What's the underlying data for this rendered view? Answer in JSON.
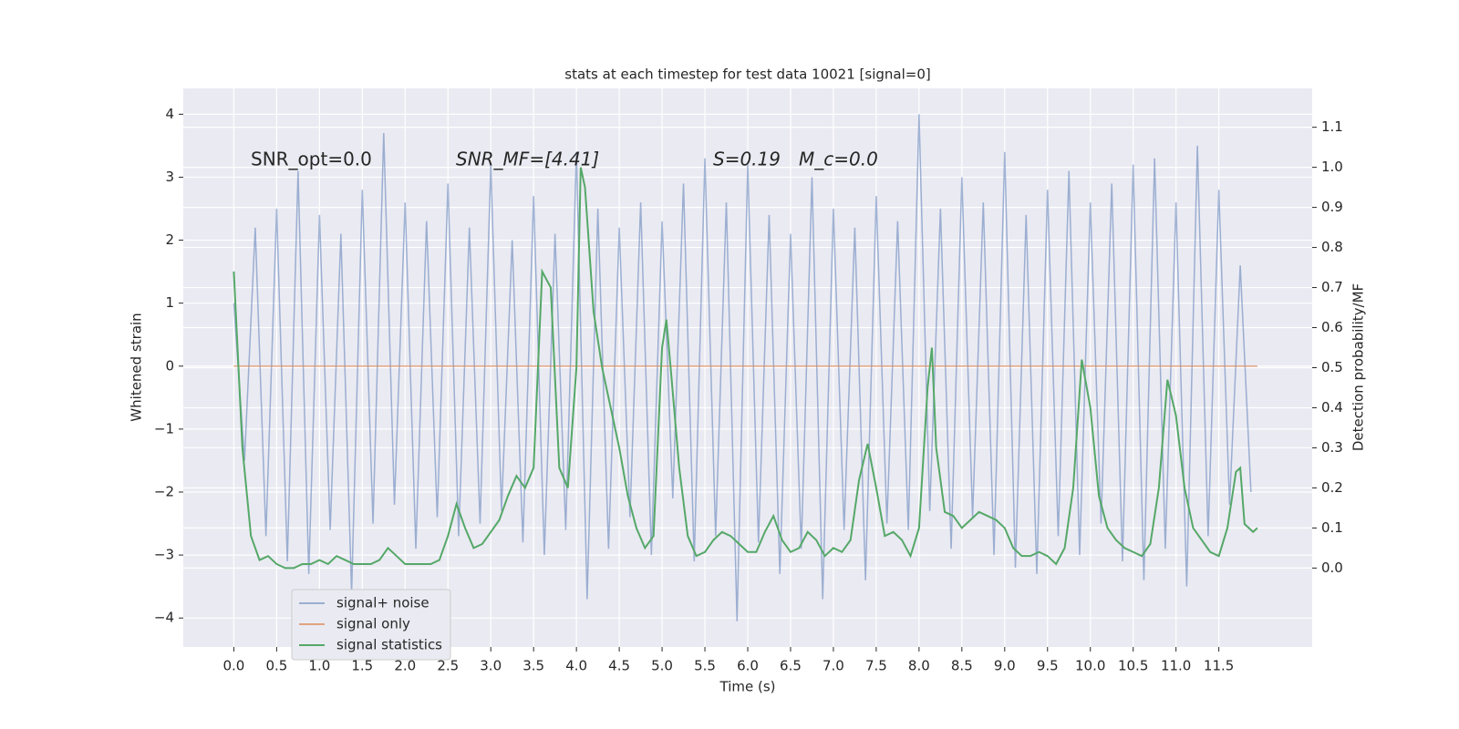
{
  "chart_data": {
    "type": "line",
    "title": "stats at each timestep for test data 10021 [signal=0]",
    "x_label": "Time (s)",
    "y_label": "Whitened strain",
    "y2_label": "Detection probability/MF",
    "annotations": [
      "SNR_opt=0.0",
      "SNR_MF=[4.41]",
      "S=0.19",
      "M_c=0.0"
    ],
    "xlim": [
      -0.59,
      12.59
    ],
    "ylim": [
      -4.46,
      4.41
    ],
    "y2lim": [
      -0.197,
      1.197
    ],
    "xticks": [
      {
        "value": 0,
        "label": "0.0"
      },
      0.5,
      {
        "value": 1,
        "label": "1.0"
      },
      1.5,
      {
        "value": 2,
        "label": "2.0"
      },
      2.5,
      {
        "value": 3,
        "label": "3.0"
      },
      3.5,
      {
        "value": 4,
        "label": "4.0"
      },
      4.5,
      {
        "value": 5,
        "label": "5.0"
      },
      5.5,
      {
        "value": 6,
        "label": "6.0"
      },
      6.5,
      {
        "value": 7,
        "label": "7.0"
      },
      7.5,
      {
        "value": 8,
        "label": "8.0"
      },
      8.5,
      {
        "value": 9,
        "label": "9.0"
      },
      9.5,
      {
        "value": 10,
        "label": "10.0"
      },
      10.5,
      {
        "value": 11,
        "label": "11.0"
      },
      11.5
    ],
    "yticks": [
      {
        "value": -4,
        "label": "−4"
      },
      {
        "value": -3,
        "label": "−3"
      },
      {
        "value": -2,
        "label": "−2"
      },
      {
        "value": -1,
        "label": "−1"
      },
      0,
      1,
      2,
      3,
      4
    ],
    "y2ticks": [
      {
        "value": 0,
        "label": "0.0"
      },
      0.1,
      0.2,
      0.3,
      0.4,
      0.5,
      0.6,
      0.7,
      0.8,
      0.9,
      {
        "value": 1,
        "label": "1.0"
      },
      1.1
    ],
    "grid": true,
    "legend": "lower left",
    "series": [
      {
        "name": "signal+ noise",
        "color": "#4c72b0",
        "opacity": 0.5,
        "x": [
          0,
          0.125,
          0.25,
          0.375,
          0.5,
          0.625,
          0.75,
          0.875,
          1,
          1.125,
          1.25,
          1.375,
          1.5,
          1.625,
          1.75,
          1.875,
          2,
          2.125,
          2.25,
          2.375,
          2.5,
          2.625,
          2.75,
          2.875,
          3,
          3.125,
          3.25,
          3.375,
          3.5,
          3.625,
          3.75,
          3.875,
          4,
          4.125,
          4.25,
          4.375,
          4.5,
          4.625,
          4.75,
          4.875,
          5,
          5.125,
          5.25,
          5.375,
          5.5,
          5.625,
          5.75,
          5.875,
          6,
          6.125,
          6.25,
          6.375,
          6.5,
          6.625,
          6.75,
          6.875,
          7,
          7.125,
          7.25,
          7.375,
          7.5,
          7.625,
          7.75,
          7.875,
          8,
          8.125,
          8.25,
          8.375,
          8.5,
          8.625,
          8.75,
          8.875,
          9,
          9.125,
          9.25,
          9.375,
          9.5,
          9.625,
          9.75,
          9.875,
          10,
          10.125,
          10.25,
          10.375,
          10.5,
          10.625,
          10.75,
          10.875,
          11,
          11.125,
          11.25,
          11.375,
          11.5,
          11.625,
          11.75,
          11.875
        ],
        "values": [
          1.0,
          -1.5,
          2.2,
          -2.7,
          2.5,
          -3.1,
          3.1,
          -3.3,
          2.4,
          -2.6,
          2.1,
          -3.6,
          2.8,
          -2.5,
          3.7,
          -2.2,
          2.6,
          -2.9,
          2.3,
          -2.4,
          2.9,
          -2.7,
          2.2,
          -2.5,
          3.2,
          -2.3,
          2.0,
          -2.8,
          2.7,
          -3.0,
          2.1,
          -2.6,
          3.4,
          -3.7,
          2.5,
          -2.9,
          2.2,
          -2.4,
          2.6,
          -3.0,
          2.3,
          -2.1,
          2.9,
          -3.1,
          3.3,
          -2.7,
          2.6,
          -4.05,
          3.2,
          -2.8,
          2.4,
          -3.3,
          2.1,
          -2.9,
          3.0,
          -3.7,
          2.5,
          -2.6,
          2.2,
          -3.4,
          2.7,
          -2.5,
          2.3,
          -2.6,
          4.0,
          -2.3,
          2.5,
          -2.9,
          3.0,
          -2.4,
          2.6,
          -3.0,
          3.4,
          -3.2,
          2.4,
          -3.3,
          2.8,
          -2.7,
          3.1,
          -3.0,
          2.6,
          -2.5,
          2.9,
          -3.1,
          3.2,
          -3.4,
          3.3,
          -2.9,
          2.6,
          -3.5,
          3.5,
          -2.7,
          2.8,
          -2.2,
          1.6,
          -2.0
        ]
      },
      {
        "name": "signal only",
        "color": "#dd8452",
        "opacity": 0.7,
        "x": [
          0,
          11.95
        ],
        "values": [
          0,
          0
        ]
      },
      {
        "name": "signal statistics",
        "color": "#55a868",
        "axis": "y2",
        "x": [
          0,
          0.1,
          0.2,
          0.3,
          0.4,
          0.5,
          0.6,
          0.7,
          0.8,
          0.9,
          1,
          1.1,
          1.2,
          1.3,
          1.4,
          1.5,
          1.6,
          1.7,
          1.8,
          1.9,
          2,
          2.1,
          2.2,
          2.3,
          2.4,
          2.5,
          2.6,
          2.7,
          2.8,
          2.9,
          3,
          3.1,
          3.2,
          3.3,
          3.4,
          3.5,
          3.6,
          3.7,
          3.8,
          3.9,
          4,
          4.05,
          4.1,
          4.2,
          4.3,
          4.4,
          4.5,
          4.6,
          4.7,
          4.8,
          4.9,
          5,
          5.05,
          5.1,
          5.2,
          5.3,
          5.4,
          5.5,
          5.6,
          5.7,
          5.8,
          5.9,
          6,
          6.1,
          6.2,
          6.3,
          6.4,
          6.5,
          6.6,
          6.7,
          6.8,
          6.9,
          7,
          7.1,
          7.2,
          7.3,
          7.4,
          7.5,
          7.6,
          7.7,
          7.8,
          7.9,
          8,
          8.1,
          8.15,
          8.2,
          8.3,
          8.4,
          8.5,
          8.6,
          8.7,
          8.8,
          8.9,
          9,
          9.1,
          9.2,
          9.3,
          9.4,
          9.5,
          9.6,
          9.7,
          9.8,
          9.9,
          10,
          10.1,
          10.2,
          10.3,
          10.4,
          10.5,
          10.6,
          10.7,
          10.8,
          10.9,
          11,
          11.1,
          11.2,
          11.3,
          11.4,
          11.5,
          11.6,
          11.7,
          11.75,
          11.8,
          11.9,
          11.95
        ],
        "values": [
          0.74,
          0.3,
          0.08,
          0.02,
          0.03,
          0.01,
          0.0,
          0.0,
          0.01,
          0.01,
          0.02,
          0.01,
          0.03,
          0.02,
          0.01,
          0.01,
          0.01,
          0.02,
          0.05,
          0.03,
          0.01,
          0.01,
          0.01,
          0.01,
          0.02,
          0.08,
          0.16,
          0.1,
          0.05,
          0.06,
          0.09,
          0.12,
          0.18,
          0.23,
          0.2,
          0.25,
          0.74,
          0.7,
          0.25,
          0.2,
          0.5,
          1.0,
          0.95,
          0.64,
          0.5,
          0.4,
          0.3,
          0.18,
          0.1,
          0.05,
          0.08,
          0.55,
          0.62,
          0.5,
          0.25,
          0.08,
          0.03,
          0.04,
          0.07,
          0.09,
          0.08,
          0.06,
          0.04,
          0.04,
          0.09,
          0.13,
          0.07,
          0.04,
          0.05,
          0.09,
          0.07,
          0.03,
          0.05,
          0.04,
          0.07,
          0.22,
          0.31,
          0.2,
          0.08,
          0.09,
          0.07,
          0.03,
          0.1,
          0.45,
          0.55,
          0.3,
          0.14,
          0.13,
          0.1,
          0.12,
          0.14,
          0.13,
          0.12,
          0.1,
          0.05,
          0.03,
          0.03,
          0.04,
          0.03,
          0.01,
          0.05,
          0.2,
          0.52,
          0.4,
          0.18,
          0.1,
          0.07,
          0.05,
          0.04,
          0.03,
          0.06,
          0.2,
          0.47,
          0.38,
          0.2,
          0.1,
          0.07,
          0.04,
          0.03,
          0.1,
          0.24,
          0.25,
          0.11,
          0.09,
          0.1
        ]
      }
    ]
  }
}
